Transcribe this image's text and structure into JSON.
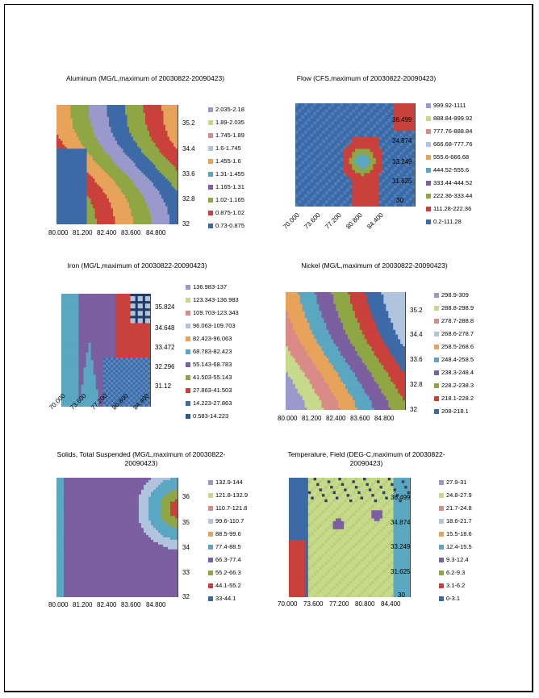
{
  "chart_data": [
    {
      "type": "heatmap",
      "title": "Aluminum (MG/L,maximum of 20030822-20090423)",
      "x_ticks": [
        "80.000",
        "81.200",
        "82.400",
        "83.600",
        "84.800"
      ],
      "y_ticks": [
        "35.2",
        "34.4",
        "33.6",
        "32.8",
        "32"
      ],
      "ylim": [
        32,
        36
      ],
      "legend": [
        "2.035-2.18",
        "1.89-2.035",
        "1.745-1.89",
        "1.6-1.745",
        "1.455-1.6",
        "1.31-1.455",
        "1.165-1.31",
        "1.02-1.165",
        "0.875-1.02",
        "0.73-0.875"
      ],
      "colors": [
        "#9999cc",
        "#c7d98a",
        "#d98b87",
        "#b0c4de",
        "#e8a35a",
        "#5aa7c2",
        "#7b5fa0",
        "#8ea644",
        "#c9413a",
        "#3d6aa6"
      ],
      "pattern": "diagonal-bands"
    },
    {
      "type": "heatmap",
      "title": "Flow (CFS,maximum of 20030822-20090423)",
      "x_ticks": [
        "70.000",
        "73.600",
        "77.200",
        "80.800",
        "84.400"
      ],
      "y_ticks": [
        "36.499",
        "34.874",
        "33.249",
        "31.625",
        "30"
      ],
      "ylim": [
        30,
        37.5
      ],
      "legend": [
        "999.92-1111",
        "888.84-999.92",
        "777.76-888.84",
        "666.68-777.76",
        "555.6-666.68",
        "444.52-555.6",
        "333.44-444.52",
        "222.36-333.44",
        "111.28-222.36",
        "0.2-111.28"
      ],
      "colors": [
        "#9999cc",
        "#c7d98a",
        "#d98b87",
        "#b0c4de",
        "#e8a35a",
        "#5aa7c2",
        "#7b5fa0",
        "#8ea644",
        "#c9413a",
        "#3d6aa6"
      ],
      "pattern": "blue-with-blobs"
    },
    {
      "type": "heatmap",
      "title": "Iron (MG/L,maximum of 20030822-20090423)",
      "x_ticks": [
        "70.000",
        "73.600",
        "77.200",
        "80.800",
        "84.400"
      ],
      "y_ticks": [
        "35.824",
        "34.648",
        "33.472",
        "32.296",
        "31.12"
      ],
      "ylim": [
        31.12,
        37
      ],
      "legend": [
        "136.983-137",
        "123.343-136.983",
        "109.703-123.343",
        "96.063-109.703",
        "82.423-96.063",
        "68.783-82.423",
        "55.143-68.783",
        "41.503-55.143",
        "27.863-41.503",
        "14.223-27.863",
        "0.583-14.223"
      ],
      "colors": [
        "#9999cc",
        "#c7d98a",
        "#d98b87",
        "#b0c4de",
        "#e8a35a",
        "#5aa7c2",
        "#7b5fa0",
        "#8ea644",
        "#c9413a",
        "#3d6aa6",
        "#2c5a8a"
      ],
      "pattern": "purple-arches"
    },
    {
      "type": "heatmap",
      "title": "Nickel (MG/L,maximum of 20030822-20090423)",
      "x_ticks": [
        "80.000",
        "81.200",
        "82.400",
        "83.600",
        "84.800"
      ],
      "y_ticks": [
        "35.2",
        "34.4",
        "33.6",
        "32.8",
        "32"
      ],
      "ylim": [
        32,
        36
      ],
      "legend": [
        "298.9-309",
        "288.8-298.9",
        "278.7-288.8",
        "268.6-278.7",
        "258.5-268.6",
        "248.4-258.5",
        "238.3-248.4",
        "228.2-238.3",
        "218.1-228.2",
        "208-218.1"
      ],
      "colors": [
        "#9999cc",
        "#c7d98a",
        "#d98b87",
        "#b0c4de",
        "#e8a35a",
        "#5aa7c2",
        "#7b5fa0",
        "#8ea644",
        "#c9413a",
        "#3d6aa6"
      ],
      "pattern": "pastel-diagonal"
    },
    {
      "type": "heatmap",
      "title": "Solids, Total Suspended (MG/L,maximum of 20030822-20090423)",
      "x_ticks": [
        "80.000",
        "81.200",
        "82.400",
        "83.600",
        "84.800"
      ],
      "y_ticks": [
        "36",
        "35",
        "34",
        "33",
        "32"
      ],
      "ylim": [
        32,
        36.6
      ],
      "legend": [
        "132.9-144",
        "121.8-132.9",
        "110.7-121.8",
        "99.6-110.7",
        "88.5-99.6",
        "77.4-88.5",
        "66.3-77.4",
        "55.2-66.3",
        "44.1-55.2",
        "33-44.1"
      ],
      "colors": [
        "#9999cc",
        "#c7d98a",
        "#d98b87",
        "#b0c4de",
        "#e8a35a",
        "#5aa7c2",
        "#7b5fa0",
        "#8ea644",
        "#c9413a",
        "#3d6aa6"
      ],
      "pattern": "purple-corner"
    },
    {
      "type": "heatmap",
      "title": "Temperature, Field (DEG-C,maximum of 20030822-20090423)",
      "x_ticks": [
        "70.000",
        "73.600",
        "77.200",
        "80.800",
        "84.400"
      ],
      "y_ticks": [
        "36.499",
        "34.874",
        "33.249",
        "31.625",
        "30"
      ],
      "ylim": [
        30,
        37.5
      ],
      "legend": [
        "27.9-31",
        "24.8-27.9",
        "21.7-24.8",
        "18.6-21.7",
        "15.5-18.6",
        "12.4-15.5",
        "9.3-12.4",
        "6.2-9.3",
        "3.1-6.2",
        "0-3.1"
      ],
      "colors": [
        "#9999cc",
        "#c7d98a",
        "#d98b87",
        "#b0c4de",
        "#e8a35a",
        "#5aa7c2",
        "#7b5fa0",
        "#8ea644",
        "#c9413a",
        "#3d6aa6"
      ],
      "pattern": "green-field"
    }
  ]
}
